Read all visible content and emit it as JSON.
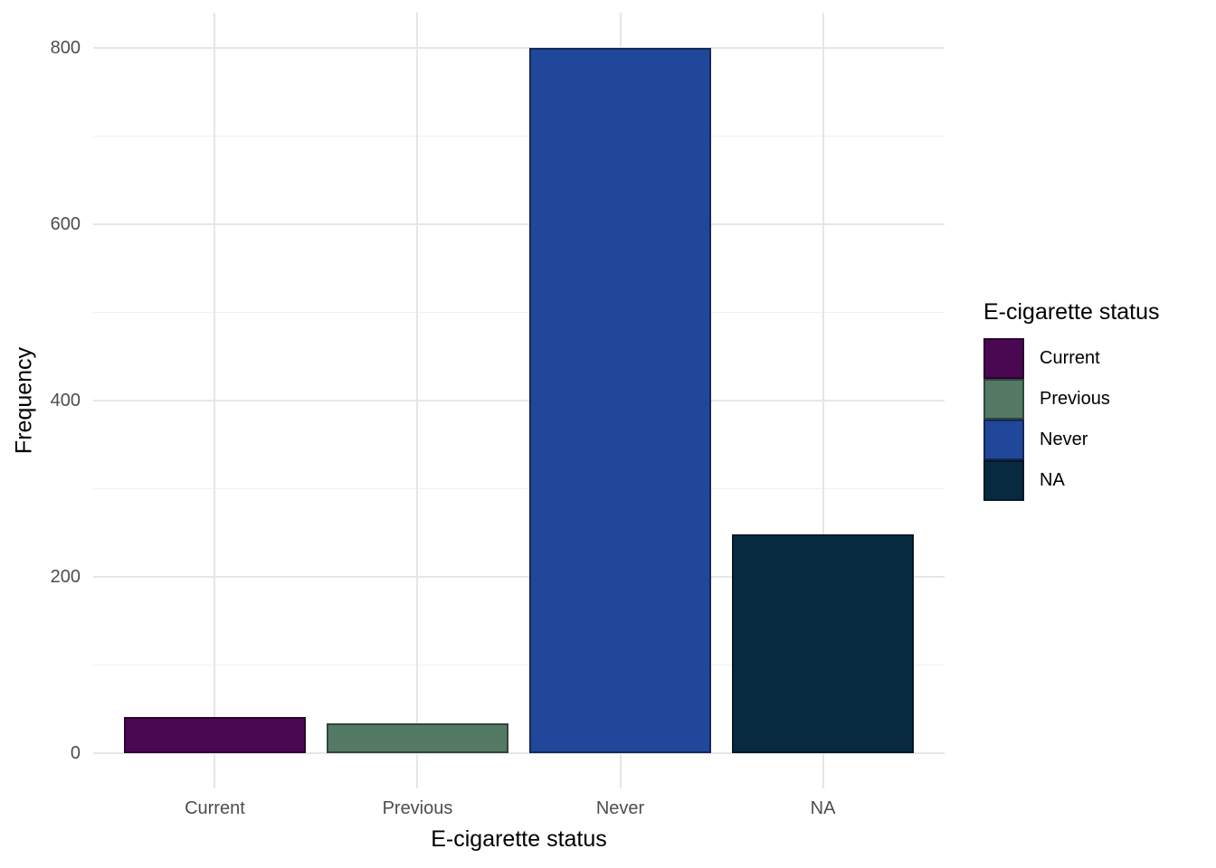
{
  "chart_data": {
    "type": "bar",
    "title": "",
    "categories": [
      "Current",
      "Previous",
      "Never",
      "NA"
    ],
    "values": [
      41,
      34,
      800,
      248
    ],
    "colors": [
      "#4B0852",
      "#547A66",
      "#21479B",
      "#082A40"
    ],
    "xlabel": "E-cigarette status",
    "ylabel": "Frequency",
    "ylim": [
      0,
      800
    ],
    "y_ticks": [
      0,
      200,
      400,
      600,
      800
    ],
    "y_minor_ticks": [
      100,
      300,
      500,
      700
    ],
    "grid": "on",
    "legend_position": "right",
    "background_color": "#FFFFFF",
    "gridline_color": "#E6E6E6",
    "tick_label_color": "#4D4D4D",
    "axis_title_color": "#000000",
    "legend": {
      "title": "E-cigarette status",
      "entries": [
        {
          "label": "Current",
          "color": "#4B0852"
        },
        {
          "label": "Previous",
          "color": "#547A66"
        },
        {
          "label": "Never",
          "color": "#21479B"
        },
        {
          "label": "NA",
          "color": "#082A40"
        }
      ]
    }
  }
}
